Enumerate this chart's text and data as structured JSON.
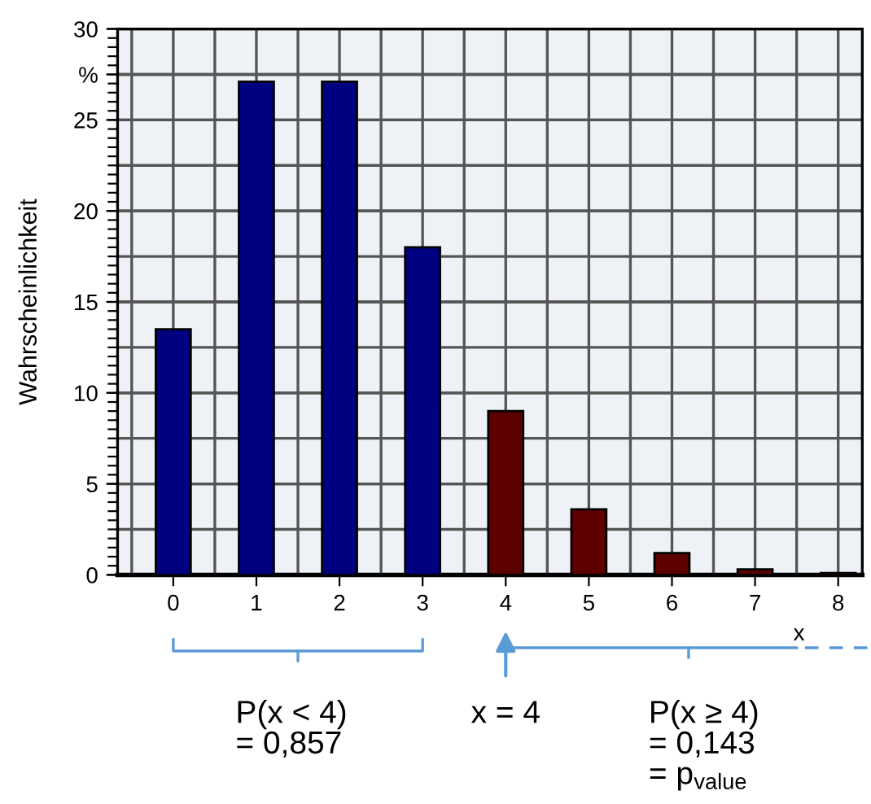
{
  "chart_data": {
    "type": "bar",
    "ylabel": "Wahrscheinlichkeit",
    "xlabel": "x",
    "categories": [
      "0",
      "1",
      "2",
      "3",
      "4",
      "5",
      "6",
      "7",
      "8"
    ],
    "values": [
      13.5,
      27.1,
      27.1,
      18.0,
      9.0,
      3.6,
      1.2,
      0.3,
      0.1
    ],
    "colors": [
      "#000080",
      "#000080",
      "#000080",
      "#000080",
      "#5c0000",
      "#5c0000",
      "#5c0000",
      "#5c0000",
      "#5c0000"
    ],
    "ylim": [
      0,
      30
    ],
    "yticks": [
      0,
      5,
      10,
      15,
      20,
      25,
      {
        "value": 27.5,
        "label": "%"
      },
      30
    ],
    "grid": true,
    "annotations": [
      "P(x < 4)\n= 0,857",
      "x = 4",
      "P(x ≥ 4)\n= 0,143\n= p$_{value}$"
    ]
  }
}
